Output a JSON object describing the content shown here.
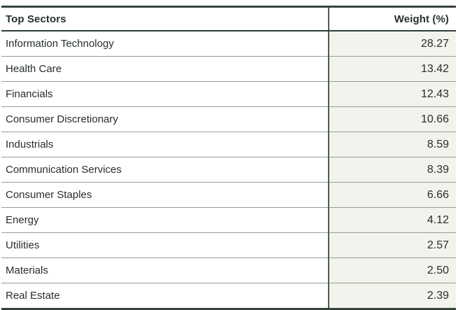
{
  "table": {
    "header": {
      "sector": "Top Sectors",
      "weight": "Weight (%)"
    },
    "rows": [
      {
        "sector": "Information Technology",
        "weight": "28.27"
      },
      {
        "sector": "Health Care",
        "weight": "13.42"
      },
      {
        "sector": "Financials",
        "weight": "12.43"
      },
      {
        "sector": "Consumer Discretionary",
        "weight": "10.66"
      },
      {
        "sector": "Industrials",
        "weight": "8.59"
      },
      {
        "sector": "Communication Services",
        "weight": "8.39"
      },
      {
        "sector": "Consumer Staples",
        "weight": "6.66"
      },
      {
        "sector": "Energy",
        "weight": "4.12"
      },
      {
        "sector": "Utilities",
        "weight": "2.57"
      },
      {
        "sector": "Materials",
        "weight": "2.50"
      },
      {
        "sector": "Real Estate",
        "weight": "2.39"
      }
    ]
  },
  "colors": {
    "border_dark": "#35433a",
    "header_divider": "#2f3d34",
    "column_divider": "#4c5b51",
    "row_separator": "#90a096",
    "weight_column_bg": "#f2f3ec",
    "header_text": "#24332a",
    "body_text": "#262f27",
    "page_bg": "#ffffff"
  },
  "chart_data": {
    "type": "table",
    "title": "Top Sectors",
    "columns": [
      "Top Sectors",
      "Weight (%)"
    ],
    "categories": [
      "Information Technology",
      "Health Care",
      "Financials",
      "Consumer Discretionary",
      "Industrials",
      "Communication Services",
      "Consumer Staples",
      "Energy",
      "Utilities",
      "Materials",
      "Real Estate"
    ],
    "values": [
      28.27,
      13.42,
      12.43,
      10.66,
      8.59,
      8.39,
      6.66,
      4.12,
      2.57,
      2.5,
      2.39
    ]
  }
}
